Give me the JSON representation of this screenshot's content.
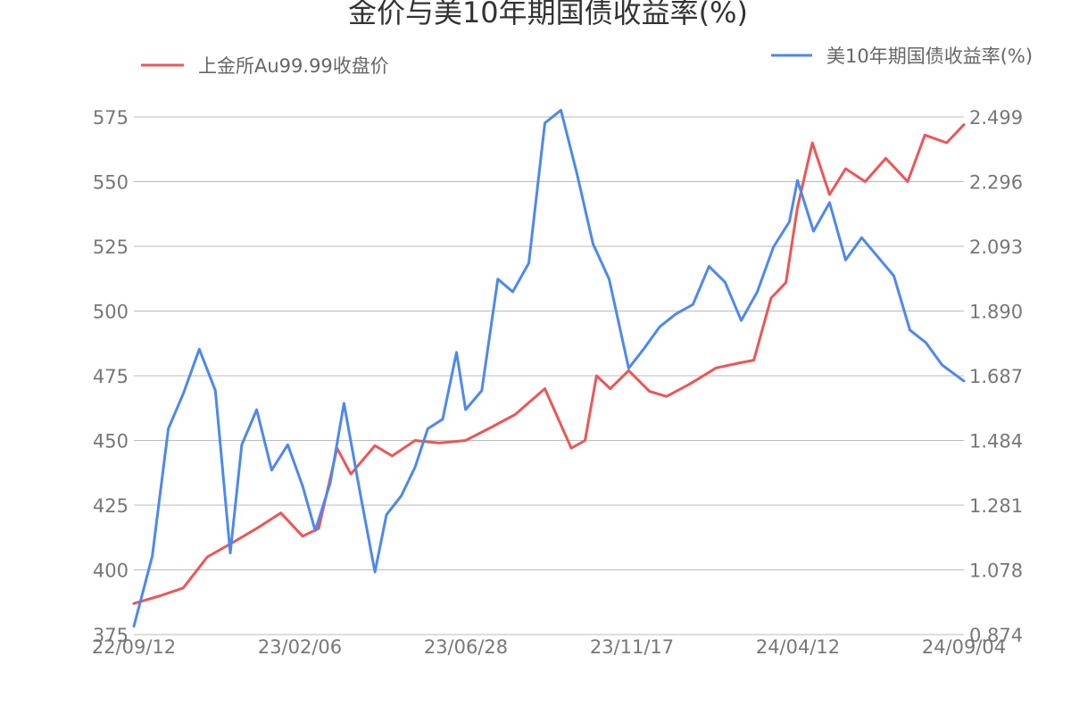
{
  "chart_data": {
    "type": "line",
    "title": "金价与美10年期国债收益率(%)",
    "legend": {
      "left_label": "上金所Au99.99收盘价",
      "right_label": "美10年期国债收益率(%)"
    },
    "x_ticks": [
      "22/09/12",
      "23/02/06",
      "23/06/28",
      "23/11/17",
      "24/04/12",
      "24/09/04"
    ],
    "y_left": {
      "ticks": [
        "575",
        "550",
        "525",
        "500",
        "475",
        "450",
        "425",
        "400",
        "375"
      ],
      "range": [
        375,
        575
      ]
    },
    "y_right": {
      "ticks": [
        "2.499",
        "2.296",
        "2.093",
        "1.890",
        "1.687",
        "1.484",
        "1.281",
        "1.078",
        "0.874"
      ],
      "range": [
        0.874,
        2.499
      ]
    },
    "series": [
      {
        "name": "上金所Au99.99收盘价",
        "color": "#ee5555",
        "axis": "left",
        "x": [
          "22/09/12",
          "22/10/05",
          "22/10/25",
          "22/11/15",
          "22/12/05",
          "22/12/28",
          "23/01/18",
          "23/02/06",
          "23/02/20",
          "23/03/08",
          "23/03/20",
          "23/04/10",
          "23/04/25",
          "23/05/15",
          "23/06/05",
          "23/06/28",
          "23/07/20",
          "23/08/10",
          "23/09/05",
          "23/09/28",
          "23/10/10",
          "23/10/20",
          "23/11/01",
          "23/11/17",
          "23/12/05",
          "23/12/20",
          "24/01/10",
          "24/02/01",
          "24/02/22",
          "24/03/05",
          "24/03/20",
          "24/04/02",
          "24/04/12",
          "24/04/25",
          "24/05/10",
          "24/05/24",
          "24/06/10",
          "24/06/28",
          "24/07/17",
          "24/08/01",
          "24/08/20",
          "24/09/04"
        ],
        "values": [
          387,
          390,
          393,
          405,
          410,
          416,
          422,
          413,
          416,
          447,
          437,
          448,
          444,
          450,
          449,
          450,
          455,
          460,
          470,
          447,
          450,
          475,
          470,
          477,
          469,
          467,
          472,
          478,
          480,
          481,
          505,
          511,
          540,
          565,
          545,
          555,
          550,
          559,
          550,
          568,
          565,
          572
        ]
      },
      {
        "name": "美10年期国债收益率(%)",
        "color": "#4d88ee",
        "axis": "right",
        "x": [
          "22/09/12",
          "22/09/28",
          "22/10/12",
          "22/10/25",
          "22/11/08",
          "22/11/22",
          "22/12/05",
          "22/12/15",
          "22/12/28",
          "23/01/10",
          "23/01/24",
          "23/02/06",
          "23/02/17",
          "23/03/02",
          "23/03/14",
          "23/03/28",
          "23/04/10",
          "23/04/20",
          "23/05/03",
          "23/05/15",
          "23/05/26",
          "23/06/08",
          "23/06/20",
          "23/06/28",
          "23/07/12",
          "23/07/26",
          "23/08/08",
          "23/08/22",
          "23/09/05",
          "23/09/19",
          "23/10/03",
          "23/10/17",
          "23/10/31",
          "23/11/17",
          "23/11/30",
          "23/12/14",
          "23/12/28",
          "24/01/12",
          "24/01/26",
          "24/02/09",
          "24/02/23",
          "24/03/08",
          "24/03/22",
          "24/04/05",
          "24/04/12",
          "24/04/26",
          "24/05/10",
          "24/05/24",
          "24/06/07",
          "24/06/21",
          "24/07/05",
          "24/07/19",
          "24/08/02",
          "24/08/16",
          "24/09/04"
        ],
        "values": [
          0.9,
          1.12,
          1.52,
          1.63,
          1.77,
          1.64,
          1.13,
          1.47,
          1.58,
          1.39,
          1.47,
          1.34,
          1.2,
          1.35,
          1.6,
          1.32,
          1.07,
          1.25,
          1.31,
          1.4,
          1.52,
          1.55,
          1.76,
          1.58,
          1.64,
          1.99,
          1.95,
          2.04,
          2.48,
          2.52,
          2.32,
          2.1,
          1.99,
          1.71,
          1.77,
          1.84,
          1.88,
          1.91,
          2.03,
          1.98,
          1.86,
          1.95,
          2.09,
          2.17,
          2.3,
          2.14,
          2.23,
          2.05,
          2.12,
          2.06,
          2.0,
          1.83,
          1.79,
          1.72,
          1.67
        ]
      }
    ]
  }
}
